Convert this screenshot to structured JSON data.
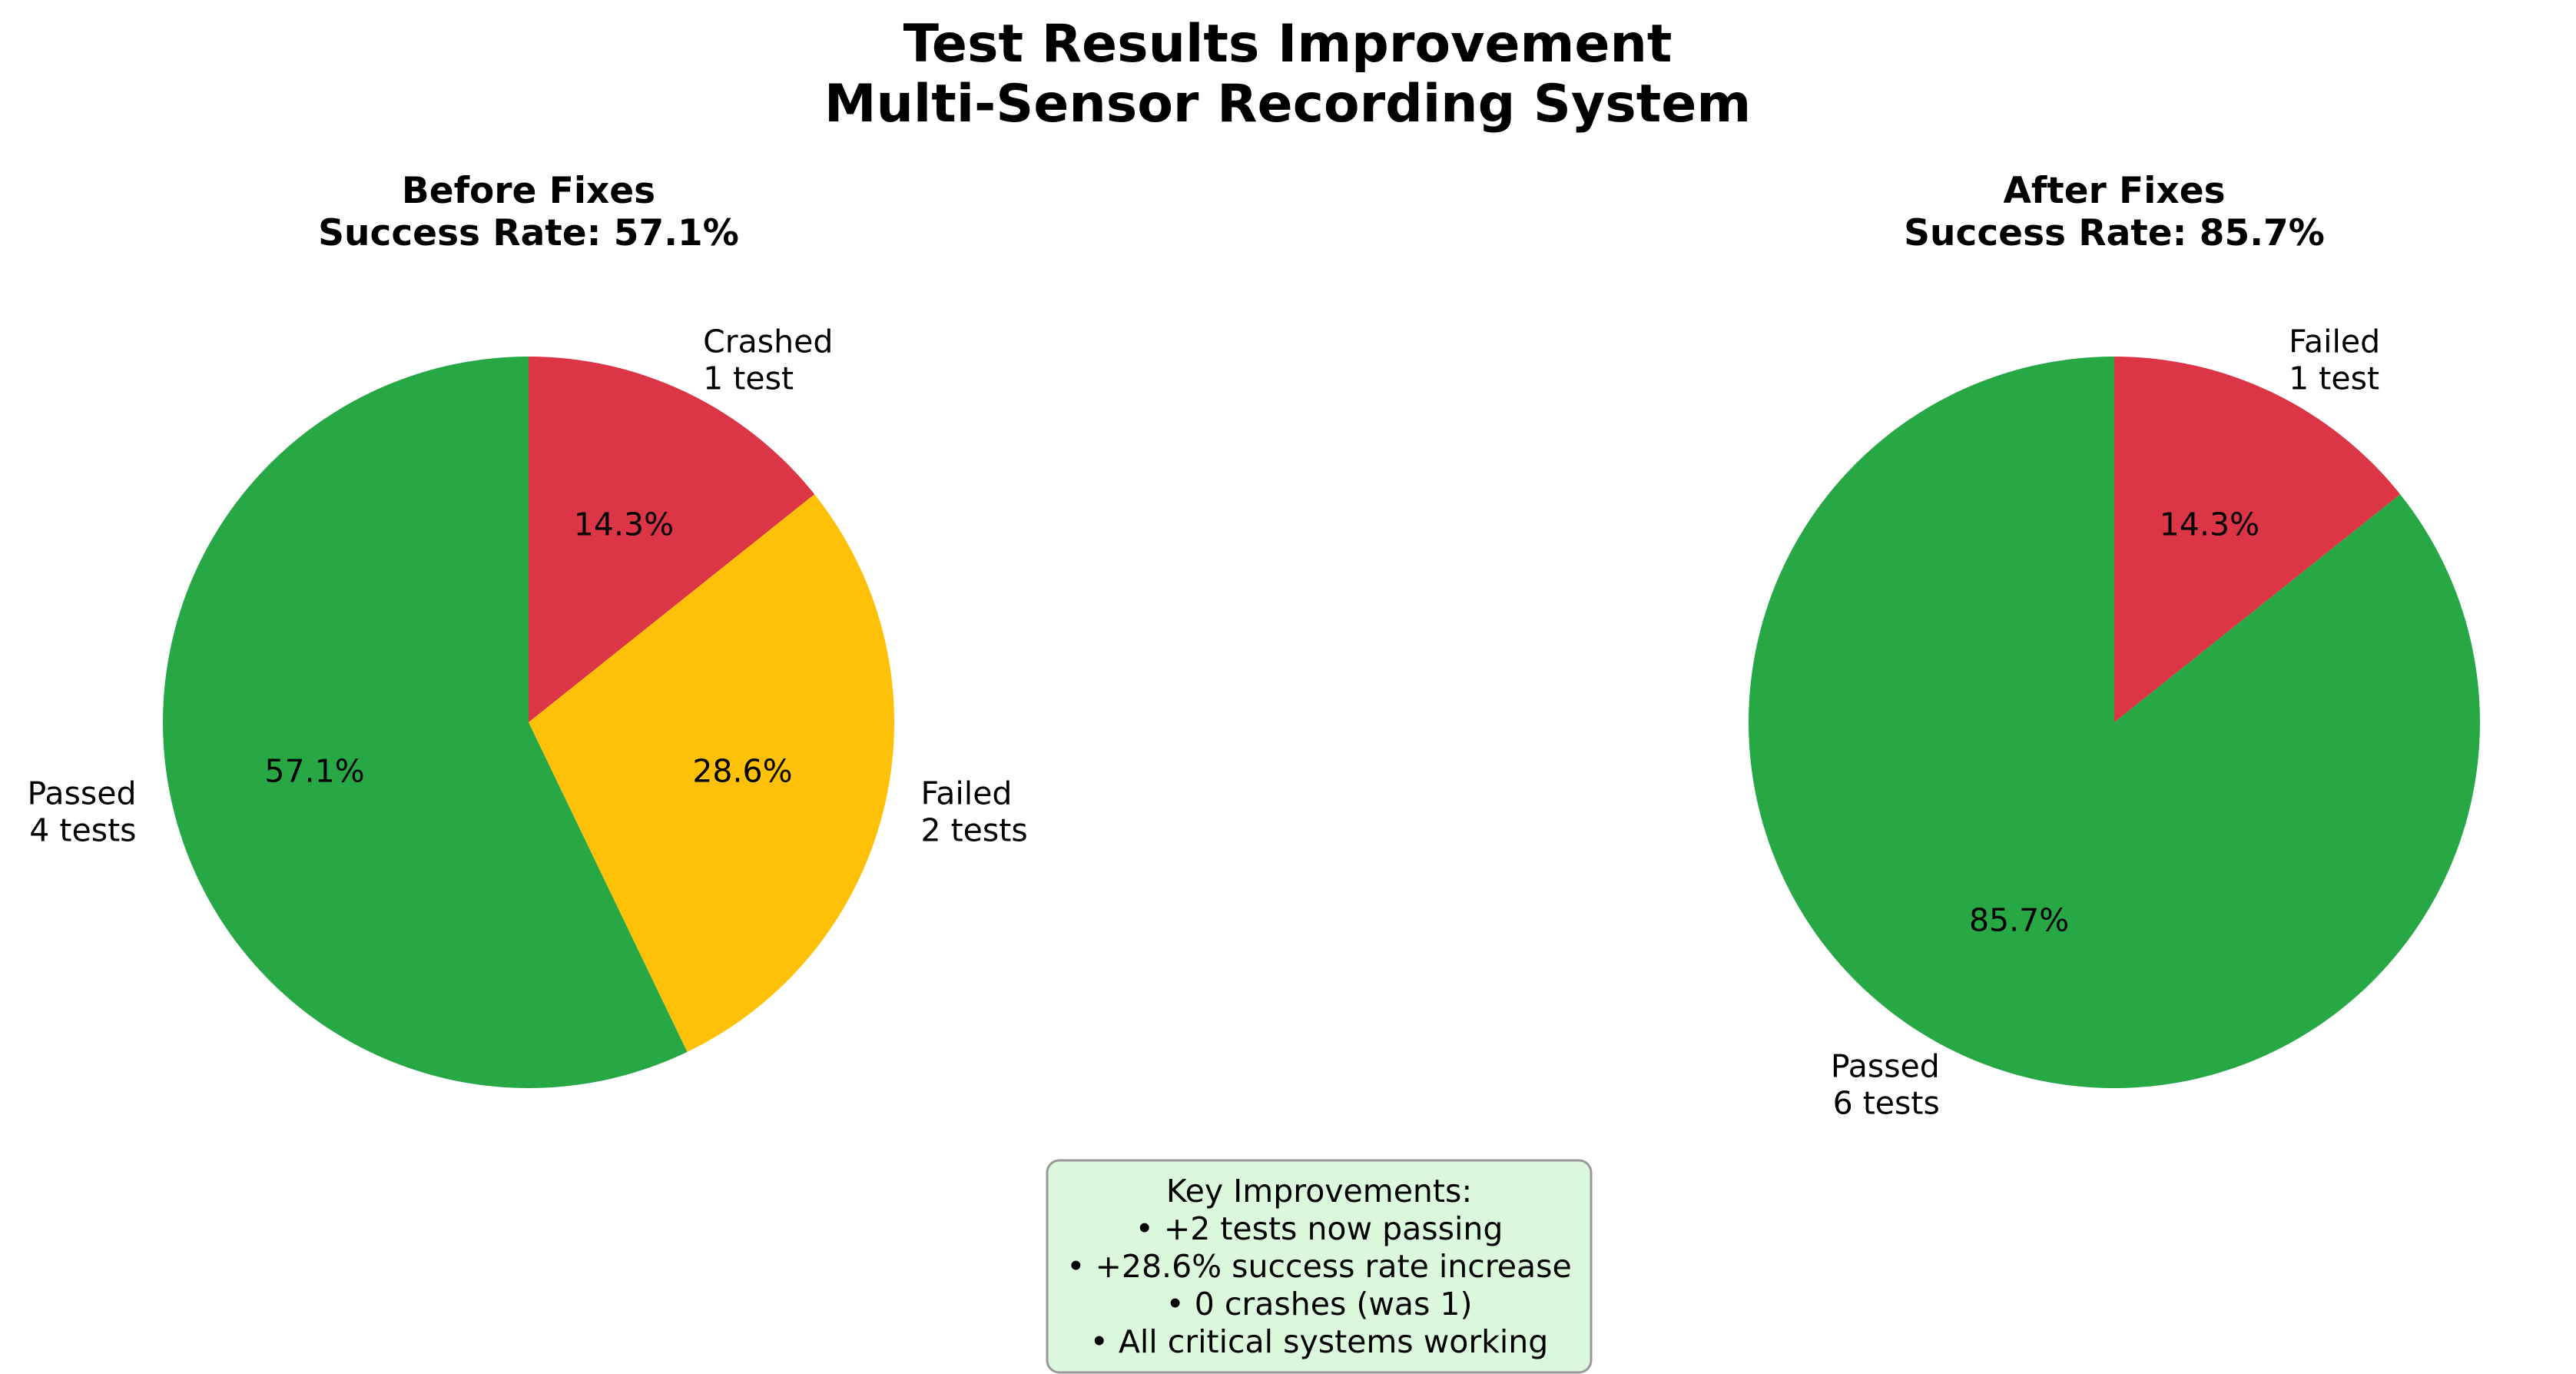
{
  "figure": {
    "title_line1": "Test Results Improvement",
    "title_line2": "Multi-Sensor Recording System"
  },
  "chart_data": [
    {
      "type": "pie",
      "title": "Before Fixes",
      "subtitle": "Success Rate: 57.1%",
      "start_angle_deg": 90,
      "direction": "clockwise",
      "slices": [
        {
          "label": "Crashed",
          "count_label": "1 test",
          "value": 1,
          "pct_label": "14.3%",
          "color": "#dc3545"
        },
        {
          "label": "Failed",
          "count_label": "2 tests",
          "value": 2,
          "pct_label": "28.6%",
          "color": "#ffc107"
        },
        {
          "label": "Passed",
          "count_label": "4 tests",
          "value": 4,
          "pct_label": "57.1%",
          "color": "#28a745"
        }
      ]
    },
    {
      "type": "pie",
      "title": "After Fixes",
      "subtitle": "Success Rate: 85.7%",
      "start_angle_deg": 90,
      "direction": "clockwise",
      "slices": [
        {
          "label": "Failed",
          "count_label": "1 test",
          "value": 1,
          "pct_label": "14.3%",
          "color": "#dc3545"
        },
        {
          "label": "Passed",
          "count_label": "6 tests",
          "value": 6,
          "pct_label": "85.7%",
          "color": "#28a745"
        }
      ]
    }
  ],
  "note": {
    "lines": [
      "Key Improvements:",
      "• +2 tests now passing",
      "• +28.6% success rate increase",
      "• 0 crashes (was 1)",
      "• All critical systems working"
    ],
    "background_color": "#dcf8dc",
    "border_color": "#999999"
  }
}
